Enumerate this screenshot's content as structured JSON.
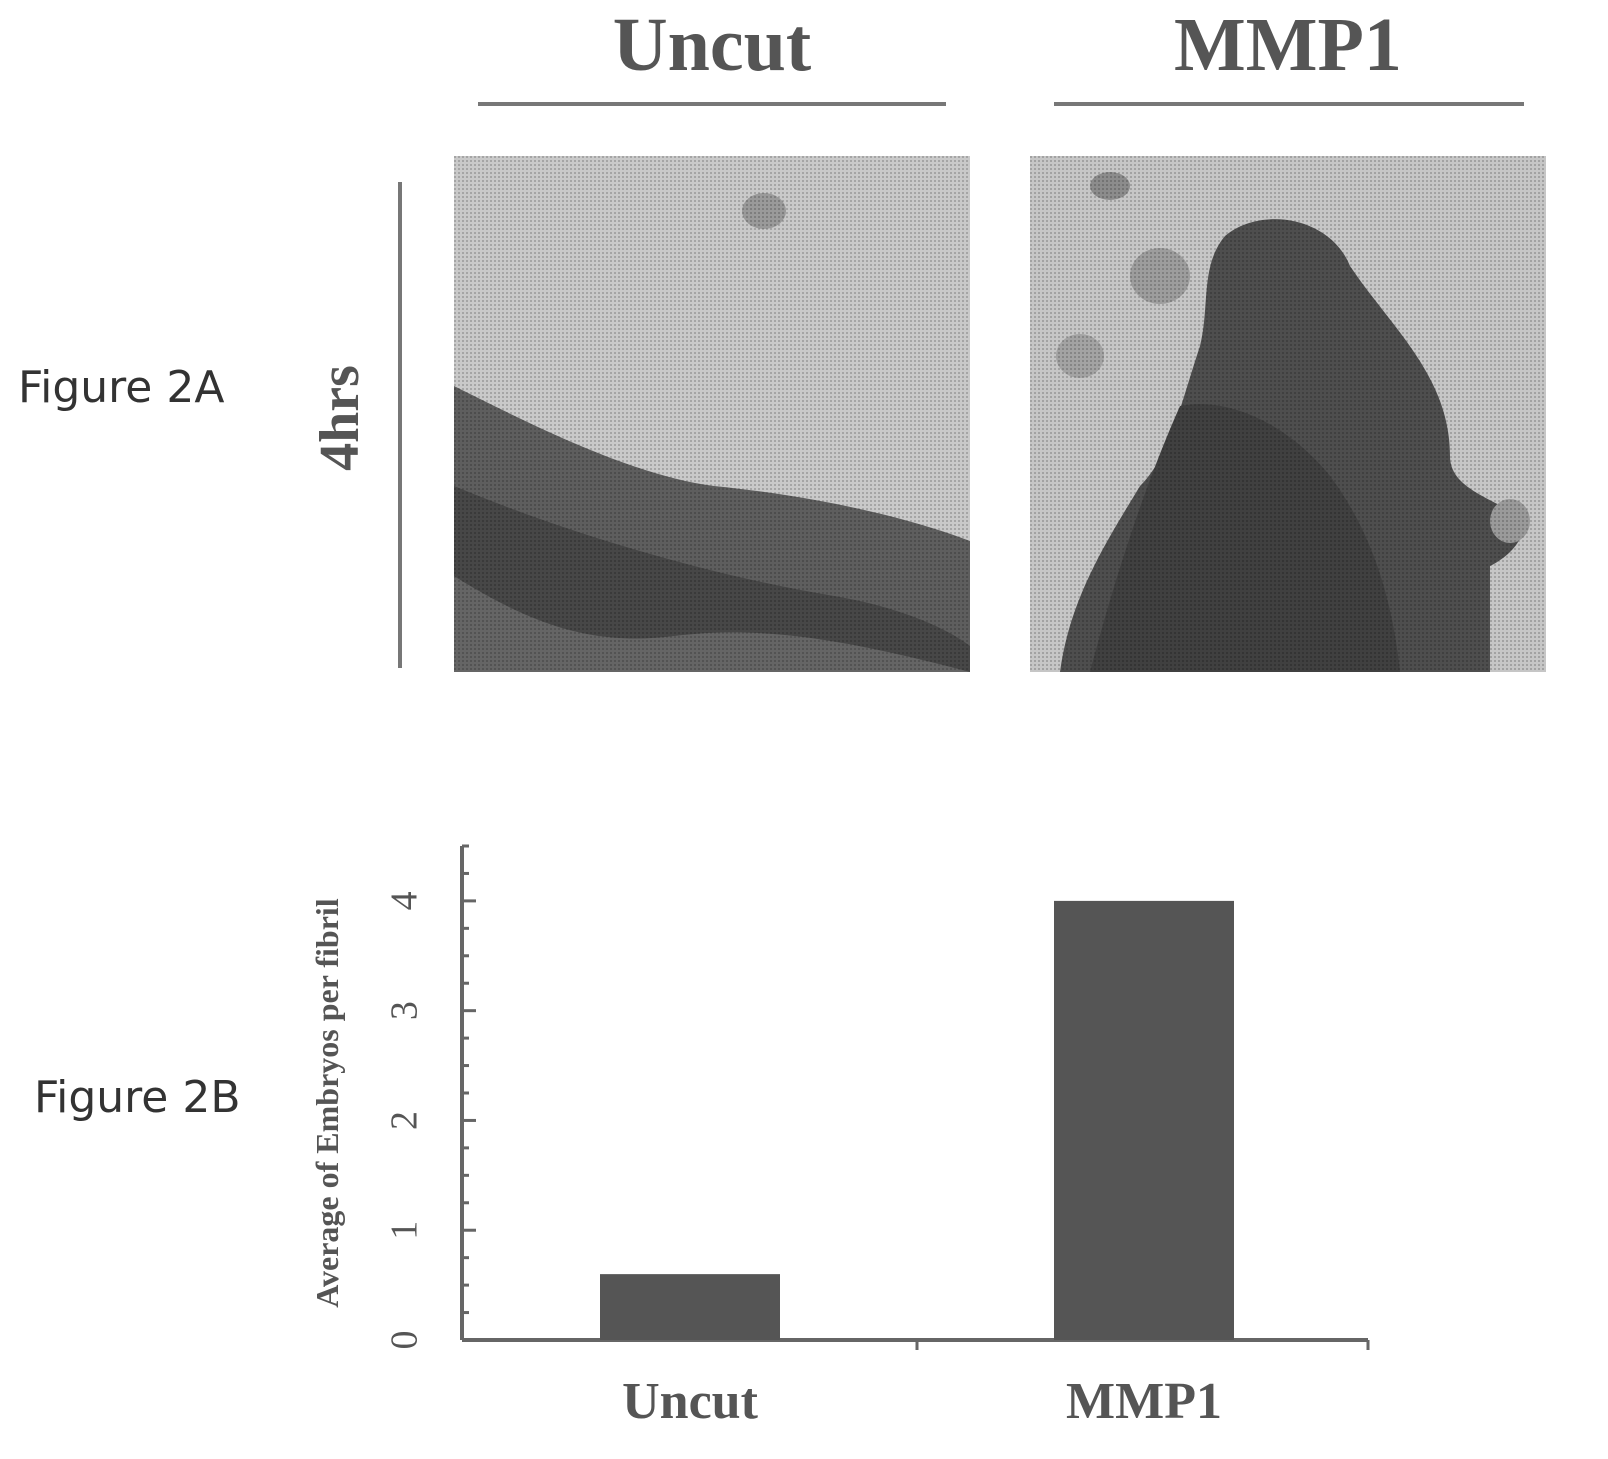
{
  "figure_2a": {
    "label": "Figure 2A",
    "row_label": "4hrs",
    "columns": [
      {
        "title": "Uncut"
      },
      {
        "title": "MMP1"
      }
    ]
  },
  "figure_2b": {
    "label": "Figure 2B"
  },
  "colors": {
    "bar": "#555555",
    "axis": "#666666",
    "text": "#555555"
  },
  "chart_data": {
    "type": "bar",
    "categories": [
      "Uncut",
      "MMP1"
    ],
    "values": [
      0.6,
      4.0
    ],
    "title": "",
    "xlabel": "",
    "ylabel": "Average of Embryos per fibril",
    "ylim": [
      0,
      4.5
    ],
    "yticks": [
      0,
      1,
      2,
      3,
      4
    ],
    "grid": false,
    "legend": "none"
  }
}
